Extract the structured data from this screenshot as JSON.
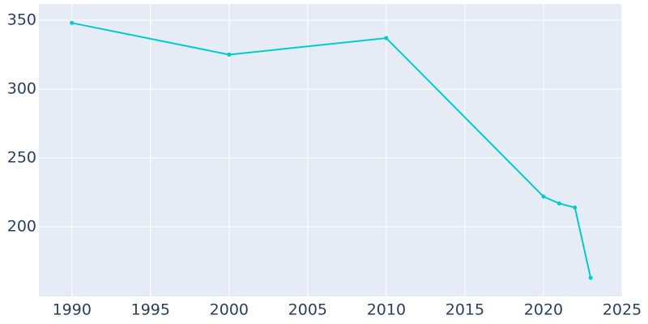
{
  "chart_data": {
    "type": "line",
    "x": [
      1990,
      2000,
      2010,
      2020,
      2021,
      2022,
      2023
    ],
    "series": [
      {
        "color": "#00cccc",
        "values": [
          348,
          325,
          337,
          222,
          217,
          214,
          163
        ]
      }
    ],
    "xlim": [
      1987.9,
      2025
    ],
    "xticks": [
      1990,
      1995,
      2000,
      2005,
      2010,
      2015,
      2020,
      2025
    ],
    "ylim": [
      149.5,
      361.7
    ],
    "yticks": [
      200,
      250,
      300,
      350
    ],
    "grid": true
  }
}
